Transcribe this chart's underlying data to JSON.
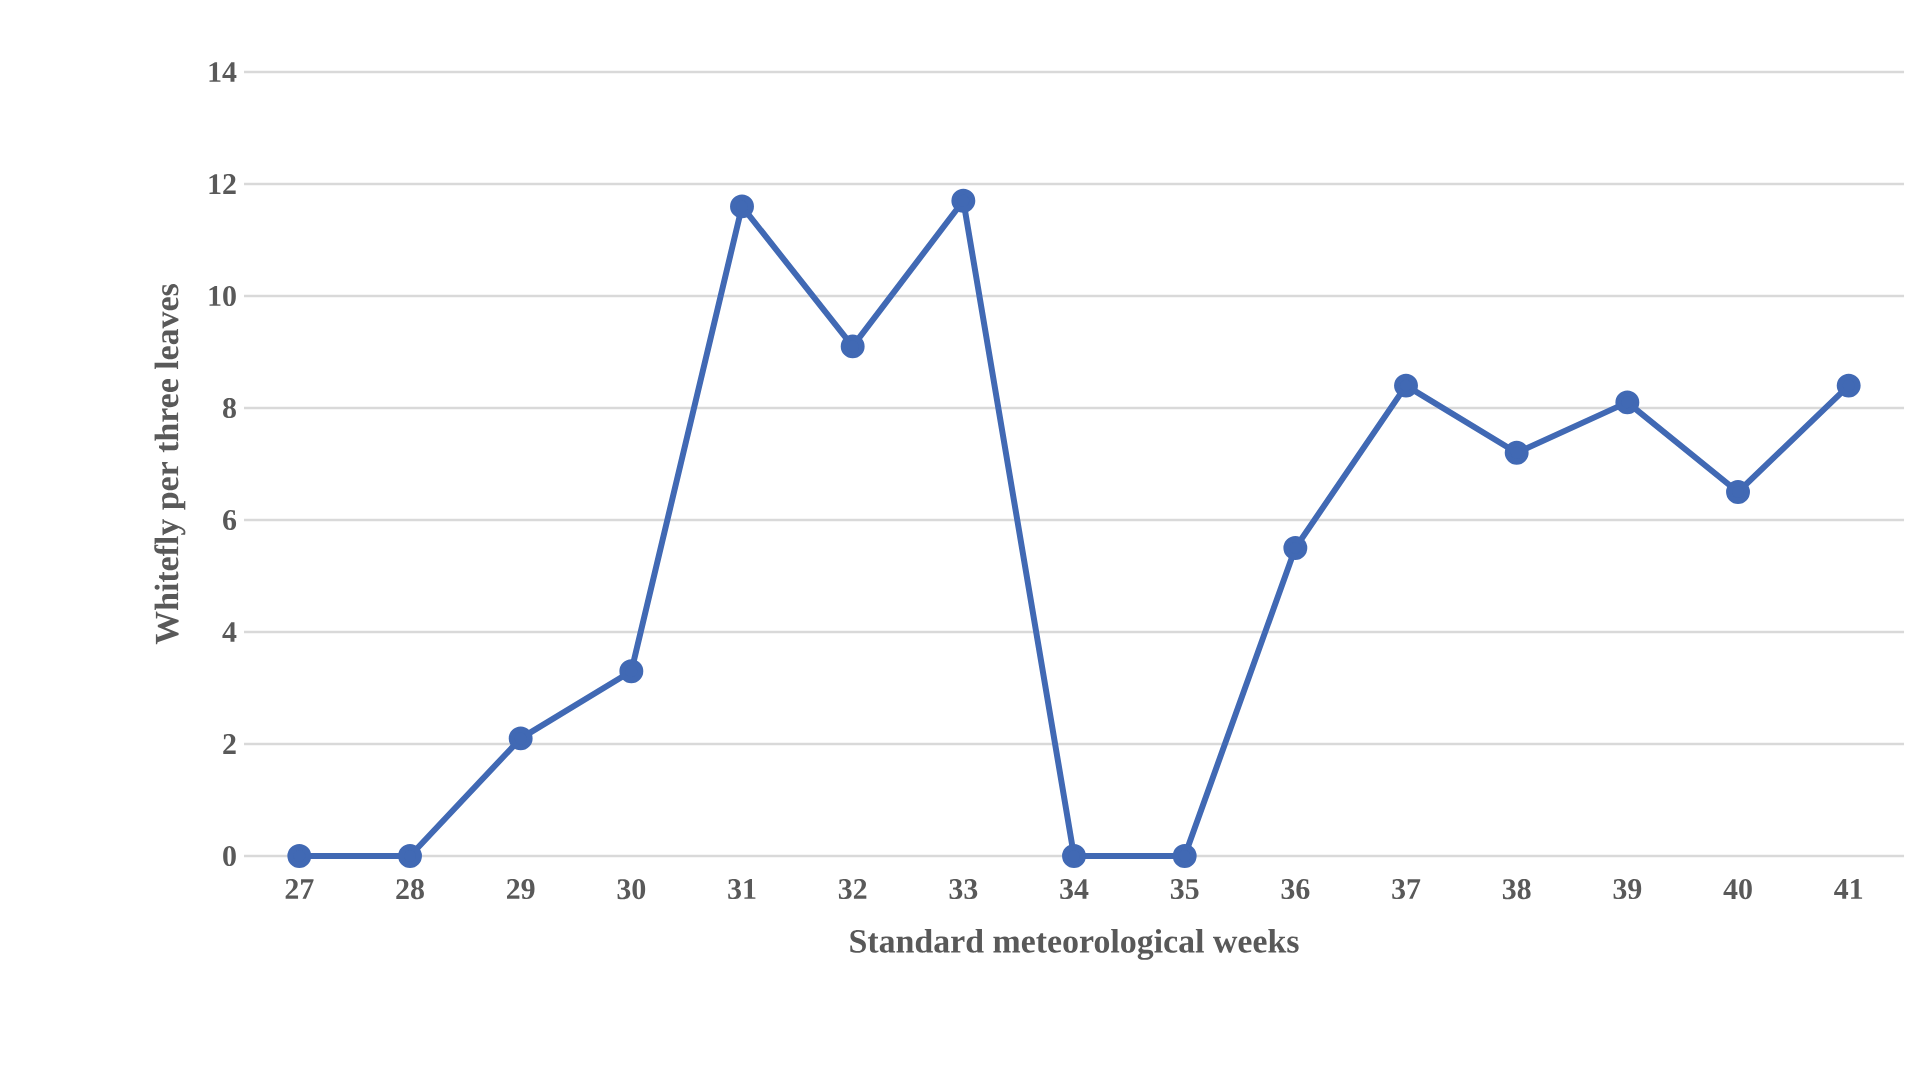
{
  "chart_data": {
    "type": "line",
    "xlabel": "Standard meteorological weeks",
    "ylabel": "Whitefly per three leaves",
    "categories": [
      "27",
      "28",
      "29",
      "30",
      "31",
      "32",
      "33",
      "34",
      "35",
      "36",
      "37",
      "38",
      "39",
      "40",
      "41"
    ],
    "values": [
      0,
      0,
      2.1,
      3.3,
      11.6,
      9.1,
      11.7,
      0,
      0,
      5.5,
      8.4,
      7.2,
      8.1,
      6.5,
      8.4
    ],
    "color": "#4169b4",
    "ylim": [
      0,
      14
    ],
    "yticks": [
      0,
      2,
      4,
      6,
      8,
      10,
      12,
      14
    ],
    "grid": "y",
    "marker": "circle",
    "line_style": "solid"
  }
}
